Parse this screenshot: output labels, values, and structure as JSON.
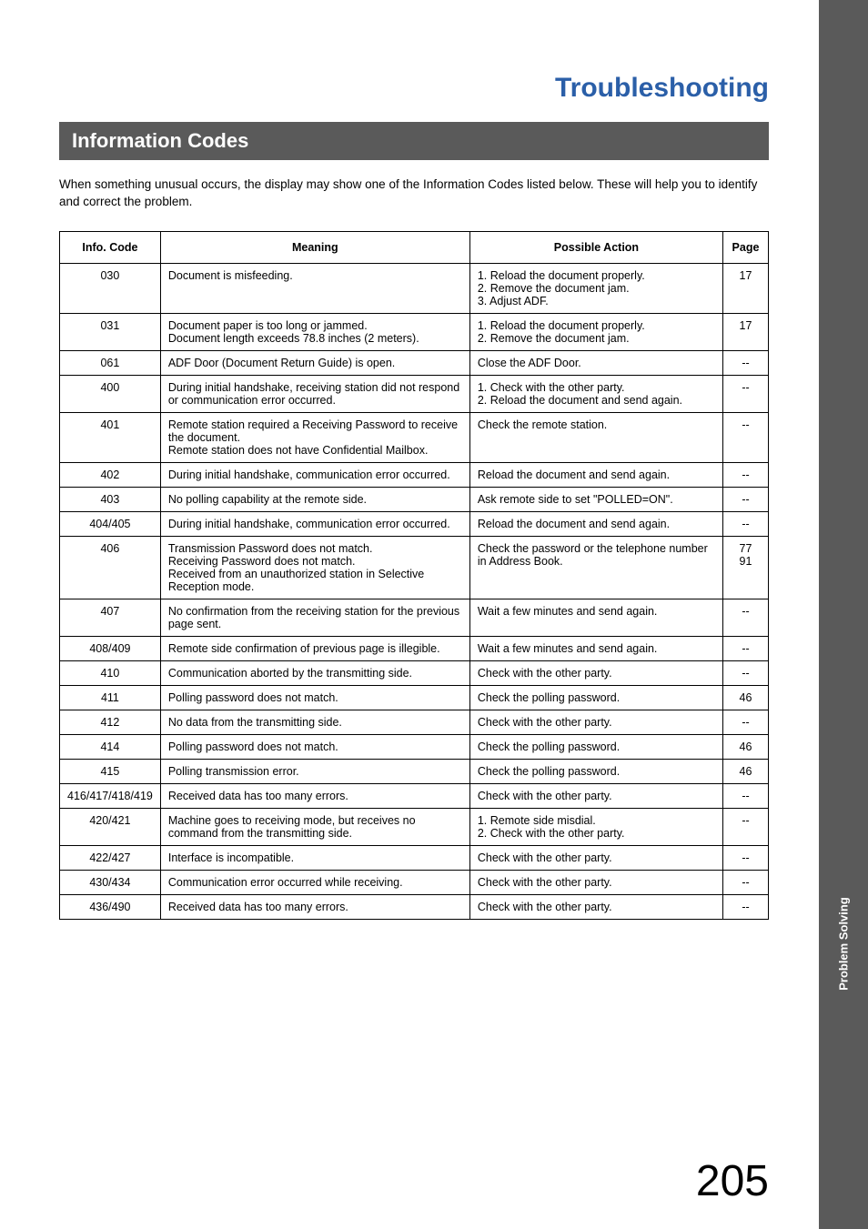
{
  "chapter_title": "Troubleshooting",
  "section_title": "Information Codes",
  "intro_text": "When something unusual occurs, the display may show one of the Information Codes  listed below.  These will help you to identify and correct the problem.",
  "side_tab": "Problem Solving",
  "page_number": "205",
  "table": {
    "headers": {
      "code": "Info. Code",
      "meaning": "Meaning",
      "action": "Possible Action",
      "page": "Page"
    },
    "rows": [
      {
        "code": "030",
        "meaning": "Document is misfeeding.",
        "actions": [
          "1.  Reload the document properly.",
          "2.  Remove the document jam.",
          "3.  Adjust ADF."
        ],
        "page": "17"
      },
      {
        "code": "031",
        "meaning": "Document paper is too long or jammed.\nDocument length exceeds 78.8 inches (2 meters).",
        "actions": [
          "1.  Reload the document properly.",
          "2.  Remove the document jam."
        ],
        "page": "17"
      },
      {
        "code": "061",
        "meaning": "ADF Door (Document Return Guide) is open.",
        "actions": [
          "Close the ADF Door."
        ],
        "page": "--"
      },
      {
        "code": "400",
        "meaning": "During initial handshake, receiving station did not respond or communication error occurred.",
        "actions": [
          "1.  Check with the other party.",
          "2.  Reload the document and send again."
        ],
        "page": "--"
      },
      {
        "code": "401",
        "meaning": "Remote station required a Receiving Password to receive the document.\nRemote station does not have Confidential Mailbox.",
        "actions": [
          "Check the remote station."
        ],
        "page": "--"
      },
      {
        "code": "402",
        "meaning": "During initial handshake, communication error occurred.",
        "actions": [
          "Reload the document and send again."
        ],
        "page": "--"
      },
      {
        "code": "403",
        "meaning": "No polling capability at the remote side.",
        "actions": [
          "Ask remote side to set \"POLLED=ON\"."
        ],
        "page": "--"
      },
      {
        "code": "404/405",
        "meaning": "During initial handshake, communication error occurred.",
        "actions": [
          "Reload the document and send again."
        ],
        "page": "--"
      },
      {
        "code": "406",
        "meaning": "Transmission Password does not match.\nReceiving Password does not match.\nReceived from an unauthorized station in Selective Reception mode.",
        "actions": [
          "Check the password or the telephone number in Address Book."
        ],
        "page": "77\n91"
      },
      {
        "code": "407",
        "meaning": "No confirmation from the receiving station for the previous page sent.",
        "actions": [
          "Wait a few minutes and send again."
        ],
        "page": "--"
      },
      {
        "code": "408/409",
        "meaning": "Remote side confirmation of previous page is illegible.",
        "actions": [
          "Wait a few minutes and send again."
        ],
        "page": "--"
      },
      {
        "code": "410",
        "meaning": "Communication aborted by the transmitting side.",
        "actions": [
          "Check with the other party."
        ],
        "page": "--"
      },
      {
        "code": "411",
        "meaning": "Polling password does not match.",
        "actions": [
          "Check the polling password."
        ],
        "page": "46"
      },
      {
        "code": "412",
        "meaning": "No data from the transmitting side.",
        "actions": [
          "Check with the other party."
        ],
        "page": "--"
      },
      {
        "code": "414",
        "meaning": "Polling password does not match.",
        "actions": [
          "Check the polling password."
        ],
        "page": "46"
      },
      {
        "code": "415",
        "meaning": "Polling transmission error.",
        "actions": [
          "Check the polling password."
        ],
        "page": "46"
      },
      {
        "code": "416/417/418/419",
        "meaning": "Received data has too many errors.",
        "actions": [
          "Check with the other party."
        ],
        "page": "--"
      },
      {
        "code": "420/421",
        "meaning": "Machine goes to receiving mode, but receives no command from the transmitting side.",
        "actions": [
          "1.  Remote side misdial.",
          "2.  Check with the other party."
        ],
        "page": "--"
      },
      {
        "code": "422/427",
        "meaning": "Interface is incompatible.",
        "actions": [
          "Check with the other party."
        ],
        "page": "--"
      },
      {
        "code": "430/434",
        "meaning": "Communication error occurred while receiving.",
        "actions": [
          "Check with the other party."
        ],
        "page": "--"
      },
      {
        "code": "436/490",
        "meaning": "Received data has too many errors.",
        "actions": [
          "Check with the other party."
        ],
        "page": "--"
      }
    ]
  }
}
